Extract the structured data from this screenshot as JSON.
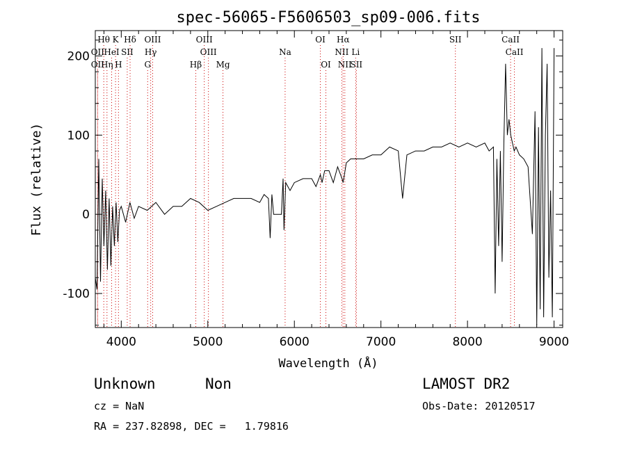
{
  "chart_data": {
    "type": "line",
    "title": "spec-56065-F5606503_sp09-006.fits",
    "xlabel": "Wavelength (Å)",
    "ylabel": "Flux (relative)",
    "xlim": [
      3700,
      9100
    ],
    "ylim": [
      -143,
      232
    ],
    "x_ticks": [
      4000,
      5000,
      6000,
      7000,
      8000,
      9000
    ],
    "y_ticks": [
      -100,
      0,
      100,
      200
    ],
    "grid": false,
    "line_color": "#000000",
    "marker_color": "#cc0000",
    "series": [
      {
        "x": [
          3700,
          3720,
          3740,
          3760,
          3780,
          3800,
          3820,
          3840,
          3860,
          3880,
          3900,
          3920,
          3940,
          3960,
          3980,
          4000,
          4050,
          4100,
          4150,
          4200,
          4300,
          4400,
          4500,
          4600,
          4700,
          4800,
          4900,
          5000,
          5100,
          5200,
          5300,
          5400,
          5500,
          5600,
          5650,
          5700,
          5720,
          5740,
          5760,
          5800,
          5850,
          5870,
          5880,
          5900,
          5950,
          6000,
          6100,
          6200,
          6250,
          6300,
          6320,
          6350,
          6400,
          6450,
          6500,
          6550,
          6563,
          6600,
          6650,
          6700,
          6800,
          6900,
          7000,
          7100,
          7200,
          7250,
          7300,
          7400,
          7500,
          7600,
          7700,
          7800,
          7900,
          8000,
          8100,
          8200,
          8250,
          8300,
          8320,
          8340,
          8360,
          8380,
          8400,
          8420,
          8440,
          8460,
          8480,
          8500,
          8520,
          8540,
          8560,
          8600,
          8650,
          8700,
          8750,
          8780,
          8800,
          8820,
          8840,
          8860,
          8880,
          8900,
          8920,
          8940,
          8960,
          8980,
          9000
        ],
        "y": [
          -80,
          -95,
          70,
          -85,
          45,
          -40,
          30,
          -70,
          20,
          -65,
          10,
          -40,
          15,
          -35,
          5,
          10,
          -10,
          15,
          -5,
          10,
          5,
          15,
          0,
          10,
          10,
          20,
          15,
          5,
          10,
          15,
          20,
          20,
          20,
          15,
          25,
          20,
          -30,
          25,
          0,
          0,
          0,
          45,
          -20,
          40,
          30,
          40,
          45,
          45,
          35,
          50,
          40,
          55,
          55,
          40,
          60,
          45,
          40,
          65,
          70,
          70,
          70,
          75,
          75,
          85,
          80,
          20,
          75,
          80,
          80,
          85,
          85,
          90,
          85,
          90,
          85,
          90,
          80,
          85,
          -100,
          70,
          -40,
          80,
          -60,
          90,
          190,
          100,
          120,
          100,
          90,
          80,
          85,
          75,
          70,
          60,
          -25,
          130,
          -140,
          110,
          -120,
          210,
          -130,
          100,
          190,
          -80,
          30,
          -130,
          210
        ]
      }
    ],
    "line_markers": [
      {
        "label": "Hθ",
        "x": 3798,
        "row": 1
      },
      {
        "label": "K",
        "x": 3934,
        "row": 1
      },
      {
        "label": "Hδ",
        "x": 4102,
        "row": 1
      },
      {
        "label": "OIII",
        "x": 4363,
        "row": 1
      },
      {
        "label": "OIII",
        "x": 4959,
        "row": 1
      },
      {
        "label": "OI",
        "x": 6300,
        "row": 1
      },
      {
        "label": "Hα",
        "x": 6563,
        "row": 1
      },
      {
        "label": "SII",
        "x": 7860,
        "row": 1
      },
      {
        "label": "CaII",
        "x": 8498,
        "row": 1
      },
      {
        "label": "OII",
        "x": 3727,
        "row": 2
      },
      {
        "label": "HeI",
        "x": 3889,
        "row": 2
      },
      {
        "label": "SII",
        "x": 4069,
        "row": 2
      },
      {
        "label": "Hγ",
        "x": 4340,
        "row": 2
      },
      {
        "label": "OIII",
        "x": 5007,
        "row": 2
      },
      {
        "label": "Na",
        "x": 5893,
        "row": 2
      },
      {
        "label": "NII",
        "x": 6548,
        "row": 2
      },
      {
        "label": "Li",
        "x": 6708,
        "row": 2
      },
      {
        "label": "CaII",
        "x": 8542,
        "row": 2
      },
      {
        "label": "OII",
        "x": 3727,
        "row": 3
      },
      {
        "label": "Hη",
        "x": 3835,
        "row": 3
      },
      {
        "label": "H",
        "x": 3968,
        "row": 3
      },
      {
        "label": "G",
        "x": 4305,
        "row": 3
      },
      {
        "label": "Hβ",
        "x": 4861,
        "row": 3
      },
      {
        "label": "Mg",
        "x": 5175,
        "row": 3
      },
      {
        "label": "OI",
        "x": 6364,
        "row": 3
      },
      {
        "label": "NII",
        "x": 6583,
        "row": 3
      },
      {
        "label": "SII",
        "x": 6716,
        "row": 3
      }
    ]
  },
  "info": {
    "class": "Unknown",
    "subclass": "Non",
    "cz": "cz = NaN",
    "radec": "RA = 237.82898, DEC =   1.79816",
    "survey": "LAMOST DR2",
    "obs_date": "Obs-Date: 20120517"
  }
}
